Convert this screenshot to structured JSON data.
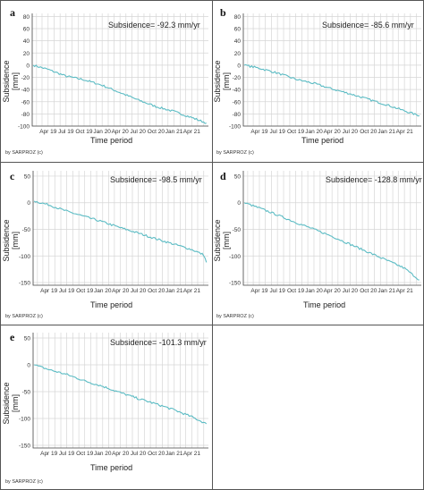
{
  "figure": {
    "credit": "by SARPROZ (c)",
    "line_color": "#5cbcc4",
    "grid_color": "#d6d6d6"
  },
  "chart_data": [
    {
      "type": "line",
      "panel": "a",
      "title": "Subsidence= -92.3 mm/yr",
      "xlabel": "Time period",
      "ylabel": "Subsidence [mm]",
      "xtick_labels": [
        "Apr 19",
        "Jul 19",
        "Oct 19",
        "Jan 20",
        "Apr 20",
        "Jul 20",
        "Oct 20",
        "Jan 21",
        "Apr 21"
      ],
      "xlim": [
        "2019-01-10",
        "2021-06-25"
      ],
      "ylim": [
        -100,
        85
      ],
      "yticks": [
        80,
        60,
        40,
        20,
        0,
        -20,
        -40,
        -60,
        -80,
        -100
      ],
      "x": [
        "2019-01-15",
        "2019-04-01",
        "2019-07-01",
        "2019-10-01",
        "2020-01-01",
        "2020-04-01",
        "2020-07-01",
        "2020-10-01",
        "2021-01-01",
        "2021-04-01",
        "2021-06-15"
      ],
      "series": [
        {
          "values": [
            0,
            -7,
            -18,
            -24,
            -33,
            -45,
            -57,
            -68,
            -76,
            -86,
            -95
          ]
        }
      ]
    },
    {
      "type": "line",
      "panel": "b",
      "title": "Subsidence= -85.6 mm/yr",
      "xlabel": "Time period",
      "ylabel": "Subsidence [mm]",
      "xtick_labels": [
        "Apr 19",
        "Jul 19",
        "Oct 19",
        "Jan 20",
        "Apr 20",
        "Jul 20",
        "Oct 20",
        "Jan 21",
        "Apr 21"
      ],
      "xlim": [
        "2019-01-10",
        "2021-06-25"
      ],
      "ylim": [
        -100,
        85
      ],
      "yticks": [
        80,
        60,
        40,
        20,
        0,
        -20,
        -40,
        -60,
        -80,
        -100
      ],
      "x": [
        "2019-01-15",
        "2019-04-01",
        "2019-07-01",
        "2019-10-01",
        "2020-01-01",
        "2020-04-01",
        "2020-07-01",
        "2020-10-01",
        "2021-01-01",
        "2021-04-01",
        "2021-06-15"
      ],
      "series": [
        {
          "values": [
            0,
            -5,
            -13,
            -23,
            -30,
            -39,
            -47,
            -56,
            -65,
            -75,
            -83
          ]
        }
      ]
    },
    {
      "type": "line",
      "panel": "c",
      "title": "Subsidence= -98.5 mm/yr",
      "xlabel": "Time period",
      "ylabel": "Subsidence [mm]",
      "xtick_labels": [
        "Apr 19",
        "Jul 19",
        "Oct 19",
        "Jan 20",
        "Apr 20",
        "Jul 20",
        "Oct 20",
        "Jan 21",
        "Apr 21"
      ],
      "xlim": [
        "2019-01-10",
        "2021-06-25"
      ],
      "ylim": [
        -155,
        60
      ],
      "yticks": [
        50,
        0,
        -50,
        -100,
        -150
      ],
      "x": [
        "2019-01-15",
        "2019-04-01",
        "2019-07-01",
        "2019-10-01",
        "2020-01-01",
        "2020-04-01",
        "2020-07-01",
        "2020-10-01",
        "2021-01-01",
        "2021-04-01",
        "2021-06-01",
        "2021-06-15"
      ],
      "series": [
        {
          "values": [
            3,
            -4,
            -16,
            -26,
            -36,
            -47,
            -57,
            -68,
            -78,
            -88,
            -98,
            -112
          ]
        }
      ]
    },
    {
      "type": "line",
      "panel": "d",
      "title": "Subsidence= -128.8 mm/yr",
      "xlabel": "Time period",
      "ylabel": "Subsidence [mm]",
      "xtick_labels": [
        "Apr 19",
        "Jul 19",
        "Oct 19",
        "Jan 20",
        "Apr 20",
        "Jul 20",
        "Oct 20",
        "Jan 21",
        "Apr 21"
      ],
      "xlim": [
        "2019-01-10",
        "2021-06-25"
      ],
      "ylim": [
        -155,
        60
      ],
      "yticks": [
        50,
        0,
        -50,
        -100,
        -150
      ],
      "x": [
        "2019-01-15",
        "2019-04-01",
        "2019-07-01",
        "2019-10-01",
        "2020-01-01",
        "2020-04-01",
        "2020-07-01",
        "2020-10-01",
        "2021-01-01",
        "2021-04-01",
        "2021-06-15"
      ],
      "series": [
        {
          "values": [
            0,
            -10,
            -23,
            -37,
            -50,
            -63,
            -78,
            -93,
            -108,
            -123,
            -145
          ]
        }
      ]
    },
    {
      "type": "line",
      "panel": "e",
      "title": "Subsidence= -101.3 mm/yr",
      "xlabel": "Time period",
      "ylabel": "Subsidence [mm]",
      "xtick_labels": [
        "Apr 19",
        "Jul 19",
        "Oct 19",
        "Jan 20",
        "Apr 20",
        "Jul 20",
        "Oct 20",
        "Jan 21",
        "Apr 21"
      ],
      "xlim": [
        "2019-01-10",
        "2021-06-25"
      ],
      "ylim": [
        -155,
        60
      ],
      "yticks": [
        50,
        0,
        -50,
        -100,
        -150
      ],
      "x": [
        "2019-01-15",
        "2019-04-01",
        "2019-07-01",
        "2019-10-01",
        "2020-01-01",
        "2020-04-01",
        "2020-07-01",
        "2020-10-01",
        "2021-01-01",
        "2021-04-01",
        "2021-06-15"
      ],
      "series": [
        {
          "values": [
            0,
            -9,
            -18,
            -30,
            -40,
            -52,
            -63,
            -73,
            -84,
            -97,
            -110
          ]
        }
      ]
    }
  ]
}
